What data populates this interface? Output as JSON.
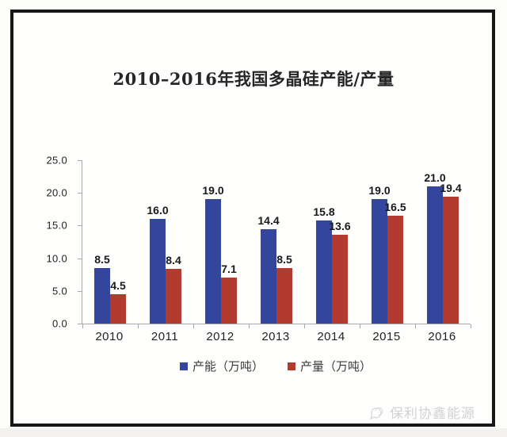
{
  "title": "2010–2016年我国多晶硅产能/产量",
  "chart_data": {
    "type": "bar",
    "categories": [
      "2010",
      "2011",
      "2012",
      "2013",
      "2014",
      "2015",
      "2016"
    ],
    "series": [
      {
        "name": "产能（万吨）",
        "color": "#34459D",
        "values": [
          8.5,
          16.0,
          19.0,
          14.4,
          15.8,
          19.0,
          21.0
        ]
      },
      {
        "name": "产量（万吨）",
        "color": "#B33A2F",
        "values": [
          4.5,
          8.4,
          7.1,
          8.5,
          13.6,
          16.5,
          19.4
        ]
      }
    ],
    "ylim": [
      0,
      25
    ],
    "ytick_step": 5,
    "yticks": [
      "0.0",
      "5.0",
      "10.0",
      "15.0",
      "20.0",
      "25.0"
    ],
    "grid": false,
    "legend_position": "bottom",
    "value_labels": true,
    "xlabel": "",
    "ylabel": ""
  },
  "watermark": {
    "text": "保利协鑫能源"
  },
  "colors": {
    "axis": "#a3a7ae",
    "frame": "#171717",
    "value_label": "#191919"
  }
}
